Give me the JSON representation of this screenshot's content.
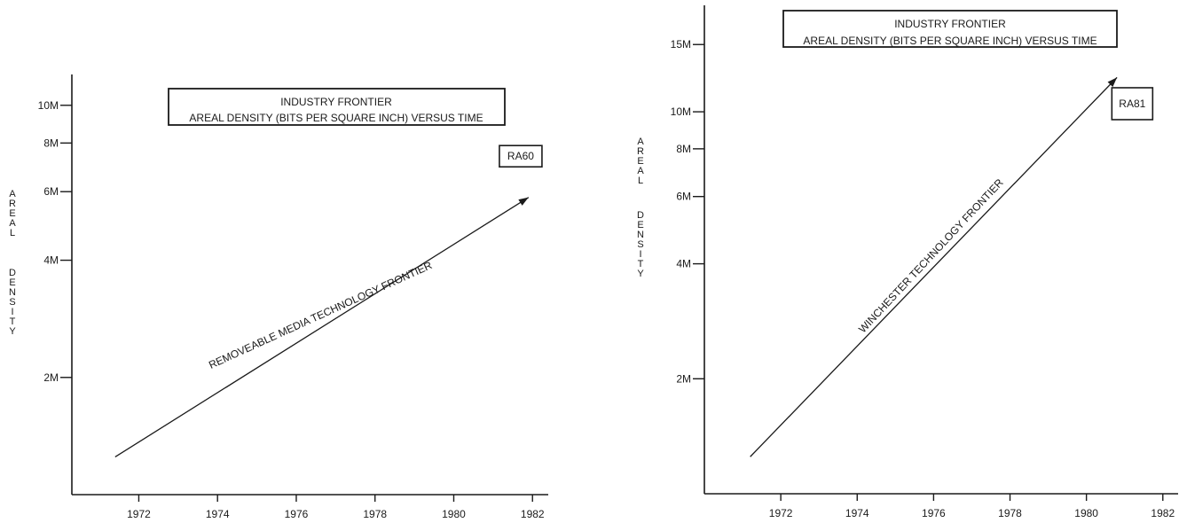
{
  "chart_data": [
    {
      "type": "line",
      "title": [
        "INDUSTRY FRONTIER",
        "AREAL DENSITY (BITS PER SQUARE INCH) VERSUS TIME"
      ],
      "ylabel": "AREAL DENSITY",
      "xlabel": "",
      "xlim": [
        1970.3,
        1982.4
      ],
      "ylim": [
        1000000,
        12000000
      ],
      "yscale": "log",
      "xticks": [
        1972,
        1974,
        1976,
        1978,
        1980,
        1982
      ],
      "xtick_labels": [
        "1972",
        "1974",
        "1976",
        "1978",
        "1980",
        "1982"
      ],
      "yticks": [
        2000000,
        4000000,
        6000000,
        8000000,
        10000000
      ],
      "ytick_labels": [
        "2M",
        "4M",
        "6M",
        "8M",
        "10M"
      ],
      "series": [
        {
          "name": "REMOVEABLE MEDIA TECHNOLOGY FRONTIER",
          "x": [
            1971.4,
            1981.9
          ],
          "y": [
            1250000,
            5800000
          ]
        }
      ],
      "annotations": [
        {
          "text": "RA60",
          "x": 1981.7,
          "y": 7400000
        }
      ],
      "grid": false,
      "legend": "none"
    },
    {
      "type": "line",
      "title": [
        "INDUSTRY FRONTIER",
        "AREAL DENSITY (BITS PER SQUARE INCH) VERSUS TIME"
      ],
      "ylabel": "AREAL DENSITY",
      "xlabel": "",
      "xlim": [
        1970.0,
        1982.4
      ],
      "ylim": [
        1000000,
        19000000
      ],
      "yscale": "log",
      "xticks": [
        1972,
        1974,
        1976,
        1978,
        1980,
        1982
      ],
      "xtick_labels": [
        "1972",
        "1974",
        "1976",
        "1978",
        "1980",
        "1982"
      ],
      "yticks": [
        2000000,
        4000000,
        6000000,
        8000000,
        10000000,
        15000000
      ],
      "ytick_labels": [
        "2M",
        "4M",
        "6M",
        "8M",
        "10M",
        "15M"
      ],
      "series": [
        {
          "name": "WINCHESTER TECHNOLOGY FRONTIER",
          "x": [
            1971.2,
            1980.8
          ],
          "y": [
            1250000,
            12300000
          ]
        }
      ],
      "annotations": [
        {
          "text": "RA81",
          "x": 1981.2,
          "y": 10500000
        }
      ],
      "grid": false,
      "legend": "none"
    }
  ]
}
